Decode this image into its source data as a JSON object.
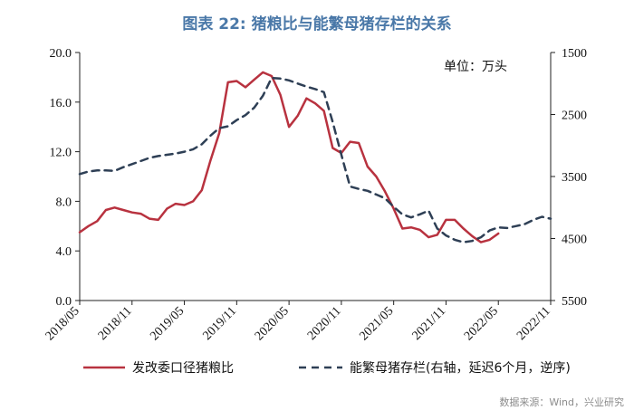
{
  "chart_data": {
    "type": "line",
    "title": "图表 22: 猪粮比与能繁母猪存栏的关系",
    "unit_label": "单位：万头",
    "source": "数据来源：Wind，兴业研究",
    "x_ticks": [
      "2018/05",
      "2018/11",
      "2019/05",
      "2019/11",
      "2020/05",
      "2020/11",
      "2021/05",
      "2021/11",
      "2022/05",
      "2022/11"
    ],
    "y_left": {
      "ticks": [
        "0.0",
        "4.0",
        "8.0",
        "12.0",
        "16.0",
        "20.0"
      ],
      "lim": [
        0,
        20
      ]
    },
    "y_right": {
      "ticks": [
        "1500",
        "2500",
        "3500",
        "4500",
        "5500"
      ],
      "lim": [
        1500,
        5500
      ],
      "inverted": true
    },
    "series": [
      {
        "name": "发改委口径猪粮比",
        "axis": "left",
        "color": "#b8323f",
        "style": "solid",
        "x": [
          "2018/05",
          "2018/06",
          "2018/07",
          "2018/08",
          "2018/09",
          "2018/10",
          "2018/11",
          "2018/12",
          "2019/01",
          "2019/02",
          "2019/03",
          "2019/04",
          "2019/05",
          "2019/06",
          "2019/07",
          "2019/08",
          "2019/09",
          "2019/10",
          "2019/11",
          "2019/12",
          "2020/01",
          "2020/02",
          "2020/03",
          "2020/04",
          "2020/05",
          "2020/06",
          "2020/07",
          "2020/08",
          "2020/09",
          "2020/10",
          "2020/11",
          "2020/12",
          "2021/01",
          "2021/02",
          "2021/03",
          "2021/04",
          "2021/05",
          "2021/06",
          "2021/07",
          "2021/08",
          "2021/09",
          "2021/10",
          "2021/11",
          "2021/12",
          "2022/01",
          "2022/02",
          "2022/03",
          "2022/04",
          "2022/05"
        ],
        "values": [
          5.5,
          6.0,
          6.4,
          7.3,
          7.5,
          7.3,
          7.1,
          7.0,
          6.6,
          6.5,
          7.4,
          7.8,
          7.7,
          8.0,
          8.9,
          11.3,
          13.5,
          17.6,
          17.7,
          17.2,
          17.8,
          18.4,
          18.1,
          16.6,
          14.0,
          14.9,
          16.3,
          15.9,
          15.3,
          12.3,
          11.9,
          12.8,
          12.7,
          10.8,
          10.0,
          8.8,
          7.4,
          5.8,
          5.9,
          5.7,
          5.1,
          5.3,
          6.5,
          6.5,
          5.8,
          5.2,
          4.7,
          4.9,
          5.4
        ]
      },
      {
        "name": "能繁母猪存栏(右轴，延迟6个月，逆序)",
        "axis": "right",
        "color": "#2e3f55",
        "style": "dashed",
        "x": [
          "2018/05",
          "2018/06",
          "2018/07",
          "2018/08",
          "2018/09",
          "2018/10",
          "2018/11",
          "2018/12",
          "2019/01",
          "2019/02",
          "2019/03",
          "2019/04",
          "2019/05",
          "2019/06",
          "2019/07",
          "2019/08",
          "2019/09",
          "2019/10",
          "2019/11",
          "2019/12",
          "2020/01",
          "2020/02",
          "2020/03",
          "2020/04",
          "2020/05",
          "2020/06",
          "2020/07",
          "2020/08",
          "2020/09",
          "2020/10",
          "2020/11",
          "2020/12",
          "2021/01",
          "2021/02",
          "2021/03",
          "2021/04",
          "2021/05",
          "2021/06",
          "2021/07",
          "2021/08",
          "2021/09",
          "2021/10",
          "2021/11",
          "2021/12",
          "2022/01",
          "2022/02",
          "2022/03",
          "2022/04",
          "2022/05",
          "2022/06",
          "2022/07",
          "2022/08",
          "2022/09",
          "2022/10",
          "2022/11"
        ],
        "values": [
          3460,
          3420,
          3400,
          3400,
          3410,
          3350,
          3300,
          3250,
          3200,
          3170,
          3150,
          3130,
          3100,
          3060,
          2980,
          2840,
          2720,
          2690,
          2590,
          2510,
          2390,
          2200,
          1910,
          1920,
          1950,
          2000,
          2050,
          2090,
          2140,
          2620,
          3150,
          3660,
          3700,
          3730,
          3790,
          3850,
          3990,
          4110,
          4160,
          4110,
          4050,
          4340,
          4450,
          4520,
          4560,
          4540,
          4480,
          4370,
          4320,
          4330,
          4300,
          4270,
          4200,
          4150,
          4180
        ]
      }
    ]
  }
}
